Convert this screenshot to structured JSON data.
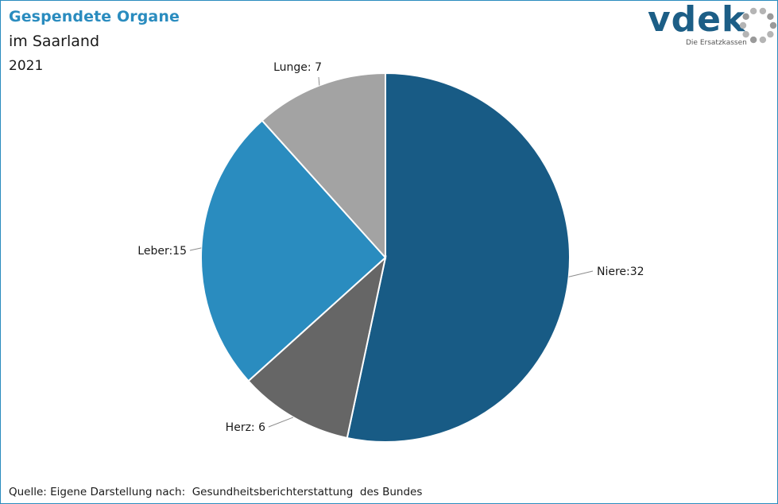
{
  "header": {
    "title": "Gespendete Organe",
    "subtitle": "im Saarland",
    "year": "2021"
  },
  "logo": {
    "wordmark": "vdek",
    "tagline": "Die Ersatzkassen"
  },
  "footer": {
    "source": "Quelle: Eigene Darstellung nach:  Gesundheitsberichterstattung  des Bundes"
  },
  "chart_data": {
    "type": "pie",
    "title": "Gespendete Organe",
    "slices": [
      {
        "name": "Niere",
        "value": 32,
        "label": "Niere:32",
        "color": "#185b85"
      },
      {
        "name": "Herz",
        "value": 6,
        "label": "Herz: 6",
        "color": "#666666"
      },
      {
        "name": "Leber",
        "value": 15,
        "label": "Leber:15",
        "color": "#2a8cbf"
      },
      {
        "name": "Lunge",
        "value": 7,
        "label": "Lunge: 7",
        "color": "#a3a3a3"
      }
    ],
    "start_angle": "12 o'clock",
    "direction": "clockwise",
    "legend": "none"
  },
  "colors": {
    "title": "#2a8cbf",
    "border": "#2a8cbf",
    "logo": "#1c5e86"
  }
}
